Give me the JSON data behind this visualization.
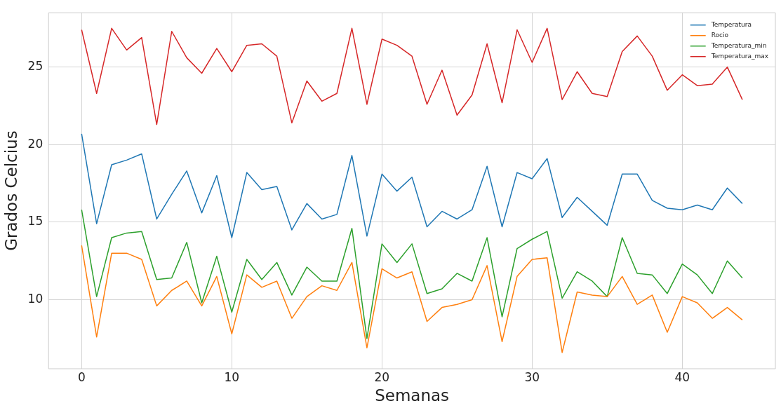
{
  "chart_data": {
    "type": "line",
    "xlabel": "Semanas",
    "ylabel": "Grados Celcius",
    "x": [
      0,
      1,
      2,
      3,
      4,
      5,
      6,
      7,
      8,
      9,
      10,
      11,
      12,
      13,
      14,
      15,
      16,
      17,
      18,
      19,
      20,
      21,
      22,
      23,
      24,
      25,
      26,
      27,
      28,
      29,
      30,
      31,
      32,
      33,
      34,
      35,
      36,
      37,
      38,
      39,
      40,
      41,
      42,
      43,
      44
    ],
    "series": [
      {
        "name": "Temperatura",
        "color": "#1f77b4",
        "values": [
          20.7,
          14.9,
          18.7,
          19.0,
          19.4,
          15.2,
          16.8,
          18.3,
          15.6,
          18.0,
          14.0,
          18.2,
          17.1,
          17.3,
          14.5,
          16.2,
          15.2,
          15.5,
          19.3,
          14.1,
          18.1,
          17.0,
          17.9,
          14.7,
          15.7,
          15.2,
          15.8,
          18.6,
          14.7,
          18.2,
          17.8,
          19.1,
          15.3,
          16.6,
          15.7,
          14.8,
          18.1,
          18.1,
          16.4,
          15.9,
          15.8,
          16.1,
          15.8,
          17.2,
          16.2
        ]
      },
      {
        "name": "Rocio",
        "color": "#ff7f0e",
        "values": [
          13.5,
          7.6,
          13.0,
          13.0,
          12.6,
          9.6,
          10.6,
          11.2,
          9.6,
          11.5,
          7.8,
          11.6,
          10.8,
          11.2,
          8.8,
          10.2,
          10.9,
          10.6,
          12.4,
          6.9,
          12.0,
          11.4,
          11.8,
          8.6,
          9.5,
          9.7,
          10.0,
          12.2,
          7.3,
          11.5,
          12.6,
          12.7,
          6.6,
          10.5,
          10.3,
          10.2,
          11.5,
          9.7,
          10.3,
          7.9,
          10.2,
          9.8,
          8.8,
          9.5,
          8.7
        ]
      },
      {
        "name": "Temperatura_min",
        "color": "#2ca02c",
        "values": [
          15.8,
          10.2,
          14.0,
          14.3,
          14.4,
          11.3,
          11.4,
          13.7,
          9.8,
          12.8,
          9.2,
          12.6,
          11.3,
          12.4,
          10.3,
          12.1,
          11.2,
          11.2,
          14.6,
          7.5,
          13.6,
          12.4,
          13.6,
          10.4,
          10.7,
          11.7,
          11.2,
          14.0,
          8.9,
          13.3,
          13.9,
          14.4,
          10.1,
          11.8,
          11.2,
          10.2,
          14.0,
          11.7,
          11.6,
          10.4,
          12.3,
          11.6,
          10.4,
          12.5,
          11.4
        ]
      },
      {
        "name": "Temperatura_max",
        "color": "#d62728",
        "values": [
          27.4,
          23.3,
          27.5,
          26.1,
          26.9,
          21.3,
          27.3,
          25.6,
          24.6,
          26.2,
          24.7,
          26.4,
          26.5,
          25.7,
          21.4,
          24.1,
          22.8,
          23.3,
          27.5,
          22.6,
          26.8,
          26.4,
          25.7,
          22.6,
          24.8,
          21.9,
          23.2,
          26.5,
          22.7,
          27.4,
          25.3,
          27.5,
          22.9,
          24.7,
          23.3,
          23.1,
          26.0,
          27.0,
          25.7,
          23.5,
          24.5,
          23.8,
          23.9,
          25.0,
          22.9
        ]
      }
    ],
    "xlim": [
      -2.2,
      46.2
    ],
    "xticks": [
      0,
      10,
      20,
      30,
      40
    ],
    "ylim": [
      5.55,
      28.5
    ],
    "yticks": [
      10,
      15,
      20,
      25
    ],
    "grid": true,
    "legend": "top right",
    "marker": "none",
    "line_style": "solid"
  }
}
